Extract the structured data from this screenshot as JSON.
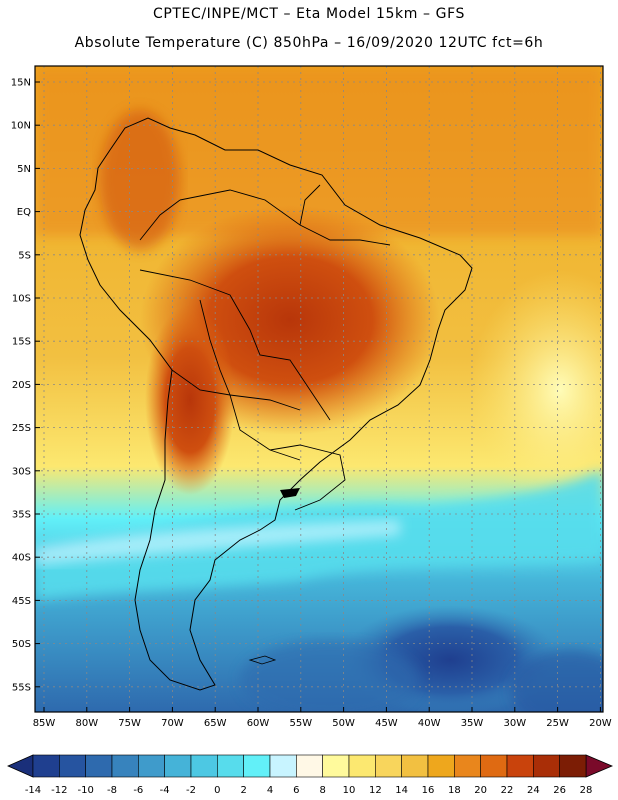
{
  "title_line1": "CPTEC/INPE/MCT –  Eta Model 15km – GFS",
  "title_line2": "Absolute Temperature (C) 850hPa – 16/09/2020 12UTC fct=6h",
  "lat_labels": [
    "15N",
    "10N",
    "5N",
    "EQ",
    "5S",
    "10S",
    "15S",
    "20S",
    "25S",
    "30S",
    "35S",
    "40S",
    "45S",
    "50S",
    "55S"
  ],
  "lon_labels": [
    "85W",
    "80W",
    "75W",
    "70W",
    "65W",
    "60W",
    "55W",
    "50W",
    "45W",
    "40W",
    "35W",
    "30W",
    "25W",
    "20W"
  ],
  "colorbar": {
    "labels": [
      "-14",
      "-12",
      "-10",
      "-8",
      "-6",
      "-4",
      "-2",
      "0",
      "2",
      "4",
      "6",
      "8",
      "10",
      "12",
      "14",
      "16",
      "18",
      "20",
      "22",
      "24",
      "26",
      "28"
    ],
    "colors": [
      "#1f3f8f",
      "#2654a0",
      "#2e6aae",
      "#3783bd",
      "#3f9bcb",
      "#45b3d8",
      "#4dc8e3",
      "#57dcec",
      "#62f0f8",
      "#c8f4ff",
      "#fff8e6",
      "#fffa9c",
      "#fce870",
      "#f8d55c",
      "#f2c041",
      "#eea71d",
      "#e9861c",
      "#df6a12",
      "#c9430c",
      "#a92e07",
      "#7c1d05"
    ],
    "low_arrow_color": "#1a2f7a",
    "high_arrow_color": "#7a0a2a"
  }
}
